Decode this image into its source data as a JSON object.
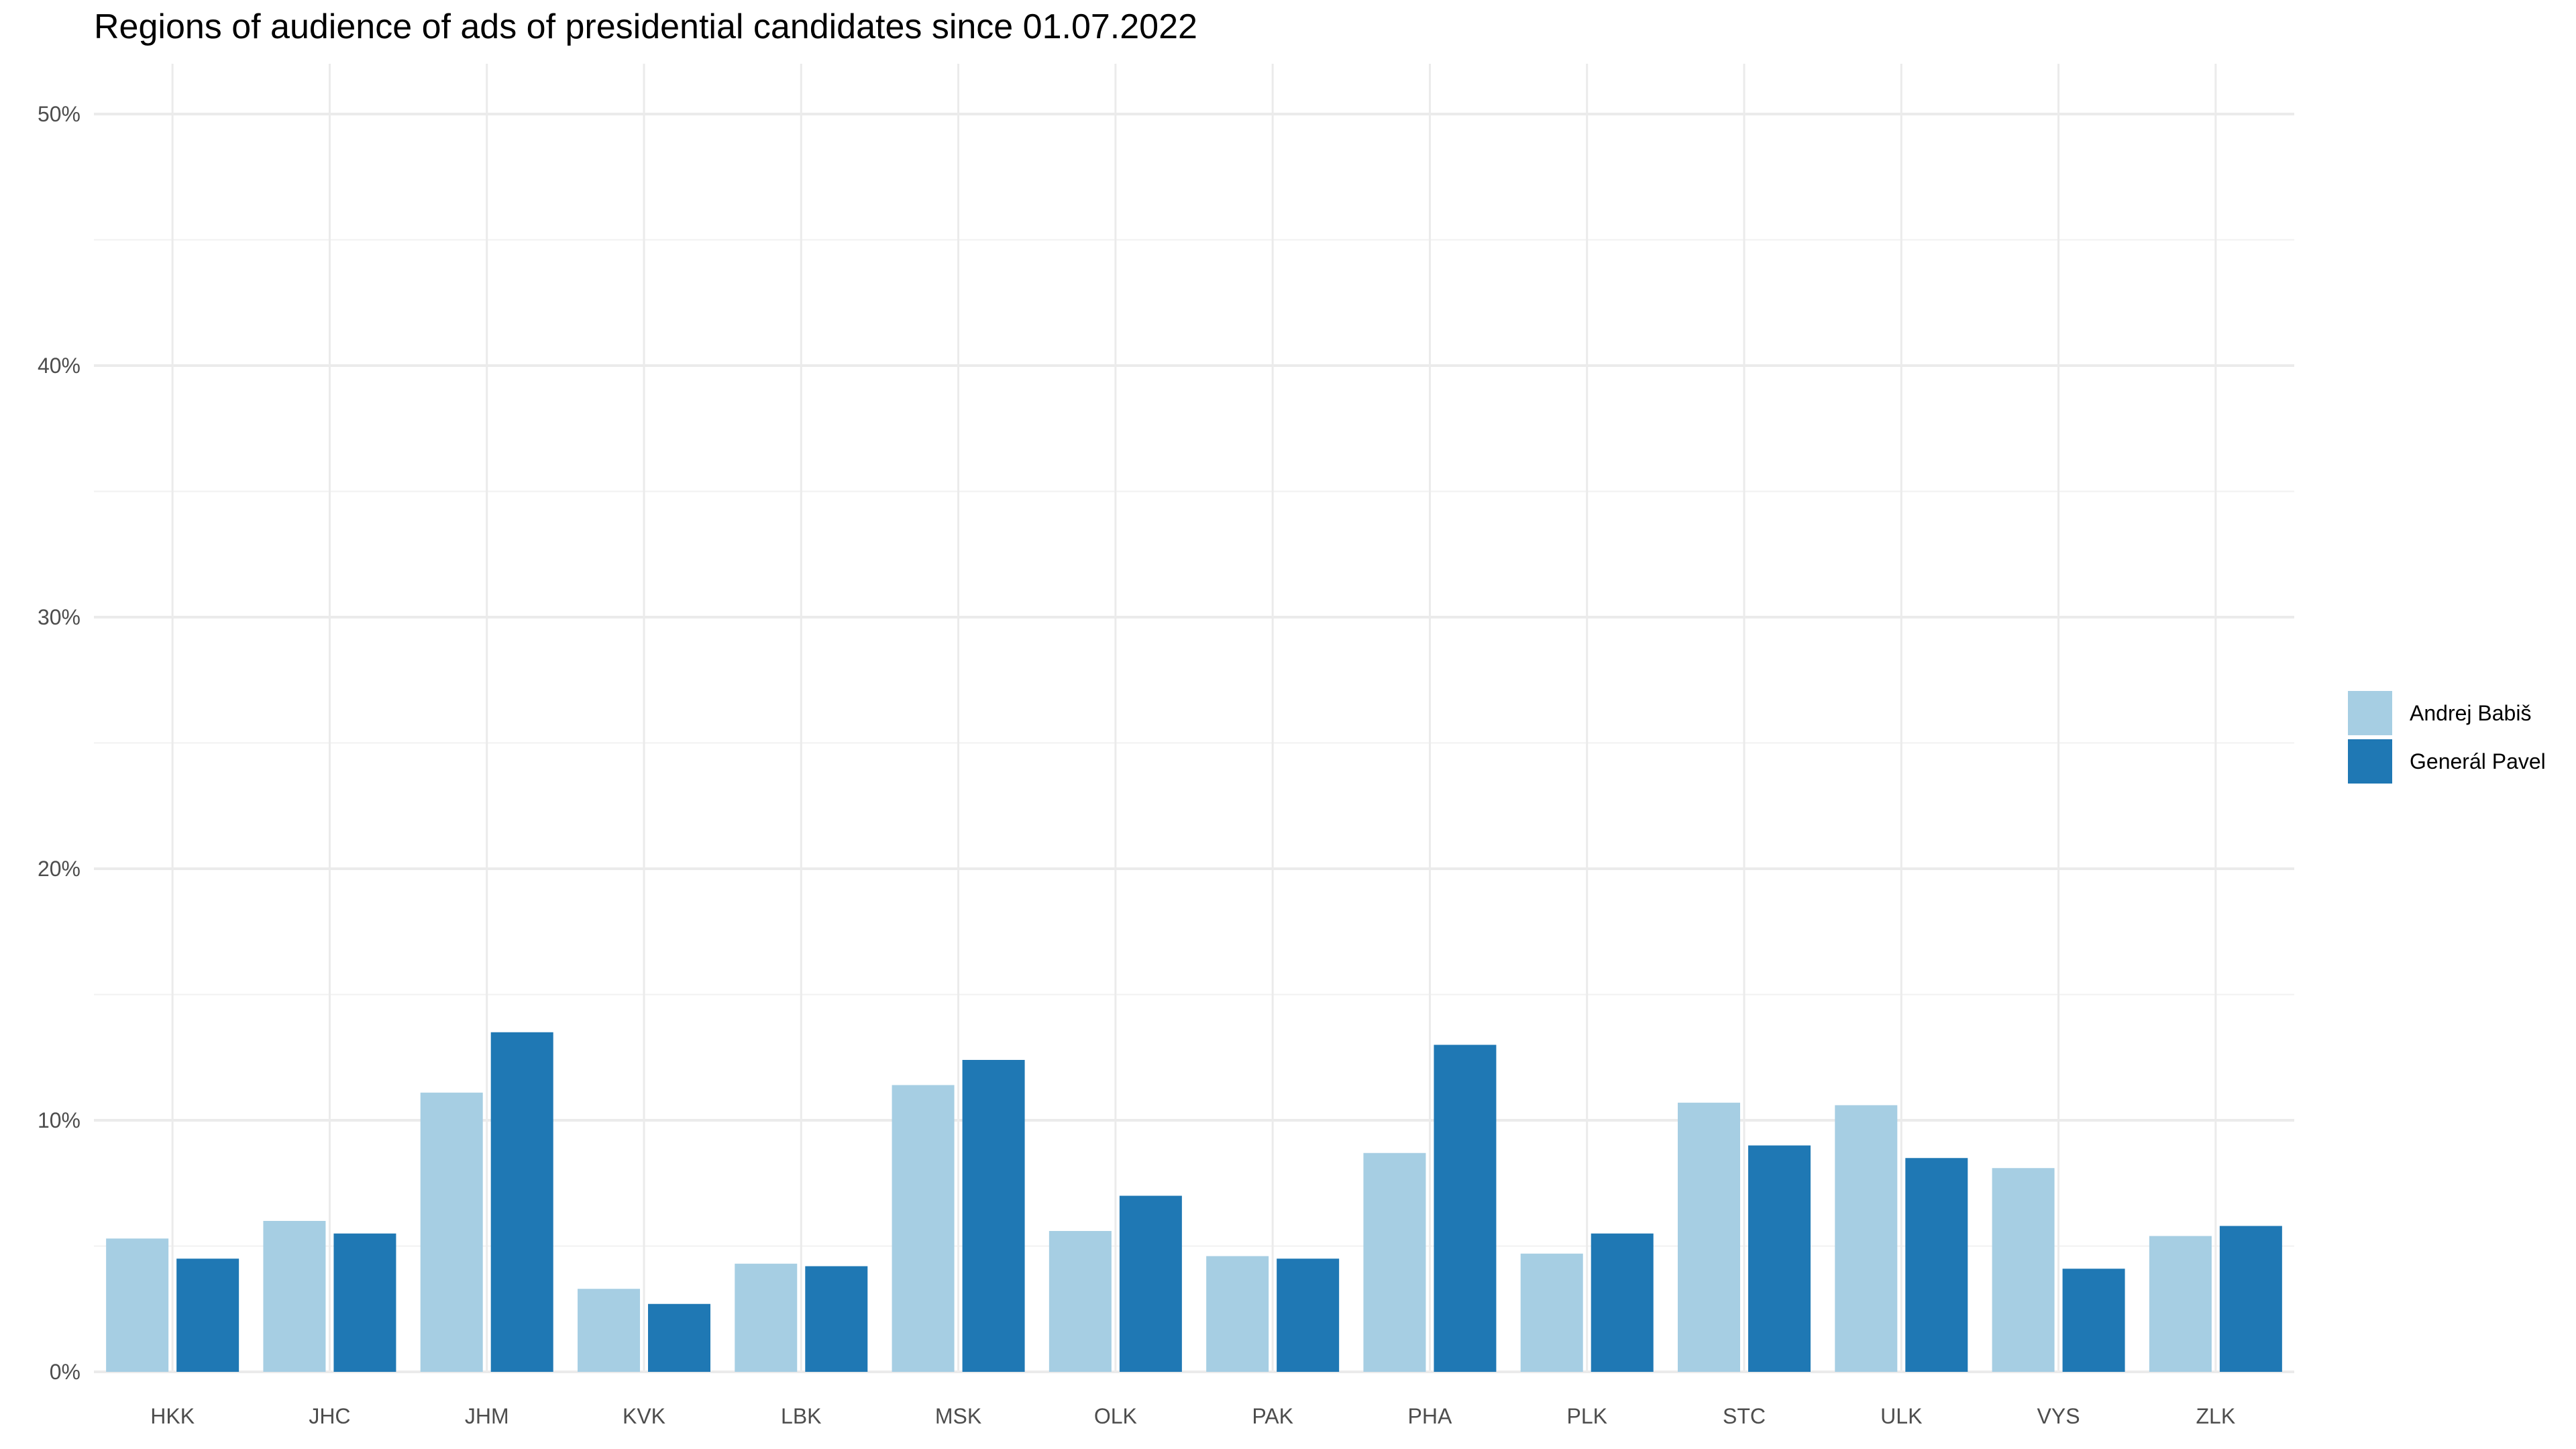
{
  "chart_data": {
    "type": "bar",
    "title": "Regions of audience of ads of presidential candidates since 01.07.2022",
    "xlabel": "",
    "ylabel": "",
    "categories": [
      "HKK",
      "JHC",
      "JHM",
      "KVK",
      "LBK",
      "MSK",
      "OLK",
      "PAK",
      "PHA",
      "PLK",
      "STC",
      "ULK",
      "VYS",
      "ZLK"
    ],
    "series": [
      {
        "name": "Andrej Babiš",
        "color": "#a6cee3",
        "values": [
          5.3,
          6.0,
          11.1,
          3.3,
          4.3,
          11.4,
          5.6,
          4.6,
          8.7,
          4.7,
          10.7,
          10.6,
          8.1,
          5.4
        ]
      },
      {
        "name": "Generál Pavel",
        "color": "#1f78b4",
        "values": [
          4.5,
          5.5,
          13.5,
          2.7,
          4.2,
          12.4,
          7.0,
          4.5,
          13.0,
          5.5,
          9.0,
          8.5,
          4.1,
          5.8
        ]
      }
    ],
    "ylim": [
      0,
      52
    ],
    "yticks": [
      0,
      10,
      20,
      30,
      40,
      50
    ],
    "ytick_labels": [
      "0%",
      "10%",
      "20%",
      "30%",
      "40%",
      "50%"
    ],
    "grid": true,
    "legend_position": "right"
  }
}
